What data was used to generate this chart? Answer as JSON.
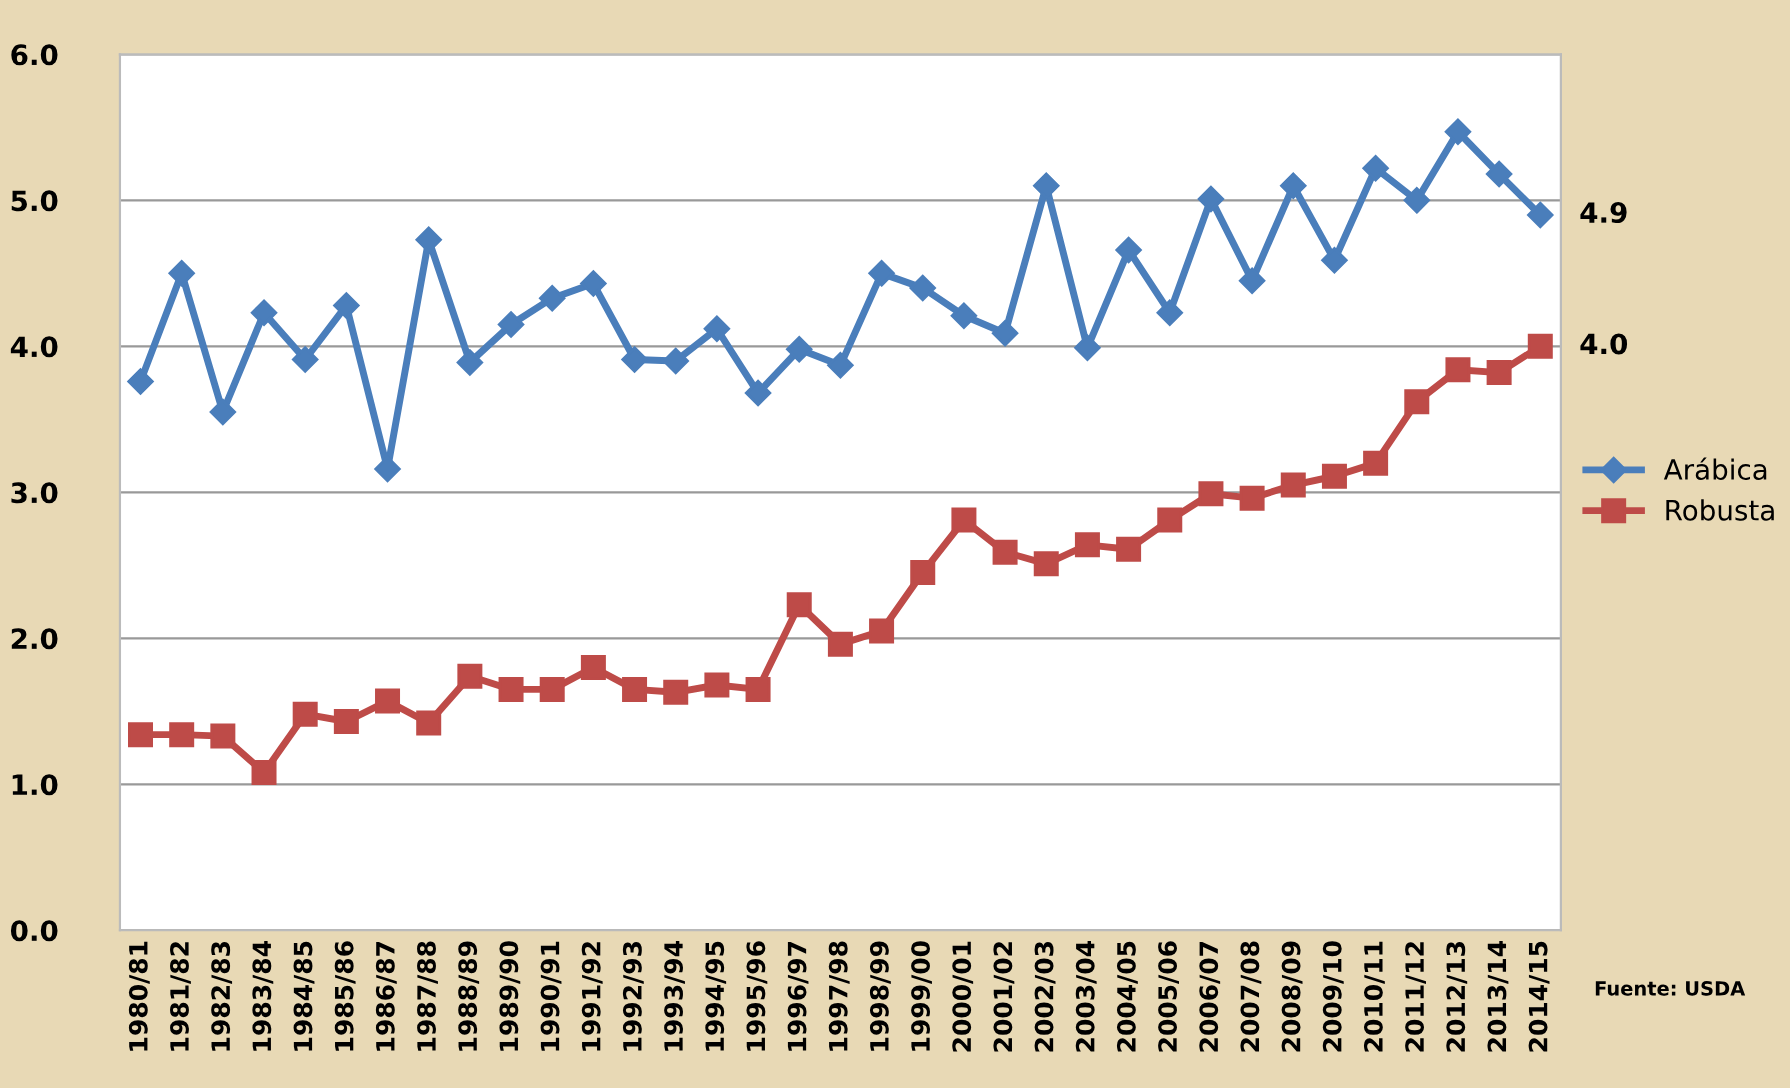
{
  "chart_data": {
    "type": "line",
    "categories": [
      "1980/81",
      "1981/82",
      "1982/83",
      "1983/84",
      "1984/85",
      "1985/86",
      "1986/87",
      "1987/88",
      "1988/89",
      "1989/90",
      "1990/91",
      "1991/92",
      "1992/93",
      "1993/94",
      "1994/95",
      "1995/96",
      "1996/97",
      "1997/98",
      "1998/99",
      "1999/00",
      "2000/01",
      "2001/02",
      "2002/03",
      "2003/04",
      "2004/05",
      "2005/06",
      "2006/07",
      "2007/08",
      "2008/09",
      "2009/10",
      "2010/11",
      "2011/12",
      "2012/13",
      "2013/14",
      "2014/15"
    ],
    "series": [
      {
        "name": "Arábica",
        "color": "#4a7ebb",
        "marker": "diamond",
        "values": [
          3.76,
          4.5,
          3.55,
          4.23,
          3.91,
          4.28,
          3.16,
          4.73,
          3.89,
          4.15,
          4.33,
          4.43,
          3.91,
          3.9,
          4.12,
          3.68,
          3.98,
          3.87,
          4.5,
          4.4,
          4.21,
          4.09,
          5.1,
          3.99,
          4.66,
          4.23,
          5.01,
          4.45,
          5.1,
          4.59,
          5.22,
          5.0,
          5.47,
          5.18,
          4.9
        ]
      },
      {
        "name": "Robusta",
        "color": "#be4b48",
        "marker": "square",
        "values": [
          1.34,
          1.34,
          1.33,
          1.08,
          1.48,
          1.43,
          1.57,
          1.42,
          1.74,
          1.65,
          1.65,
          1.8,
          1.65,
          1.63,
          1.68,
          1.65,
          2.23,
          1.96,
          2.05,
          2.45,
          2.81,
          2.59,
          2.51,
          2.64,
          2.61,
          2.81,
          2.99,
          2.96,
          3.05,
          3.11,
          3.2,
          3.62,
          3.84,
          3.82,
          4.0
        ]
      }
    ],
    "ylim": [
      0,
      6
    ],
    "yticks": [
      {
        "value": 0,
        "label": "0.0"
      },
      {
        "value": 1,
        "label": "1.0"
      },
      {
        "value": 2,
        "label": "2.0"
      },
      {
        "value": 3,
        "label": "3.0"
      },
      {
        "value": 4,
        "label": "4.0"
      },
      {
        "value": 5,
        "label": "5.0"
      },
      {
        "value": 6,
        "label": "6.0"
      }
    ],
    "grid": "y",
    "legend": "right",
    "annotations": [
      {
        "text": "4.9",
        "x": "2014/15",
        "y": 4.9
      },
      {
        "text": "4.0",
        "x": "2014/15",
        "y": 4.0
      },
      "Fuente: USDA"
    ]
  }
}
